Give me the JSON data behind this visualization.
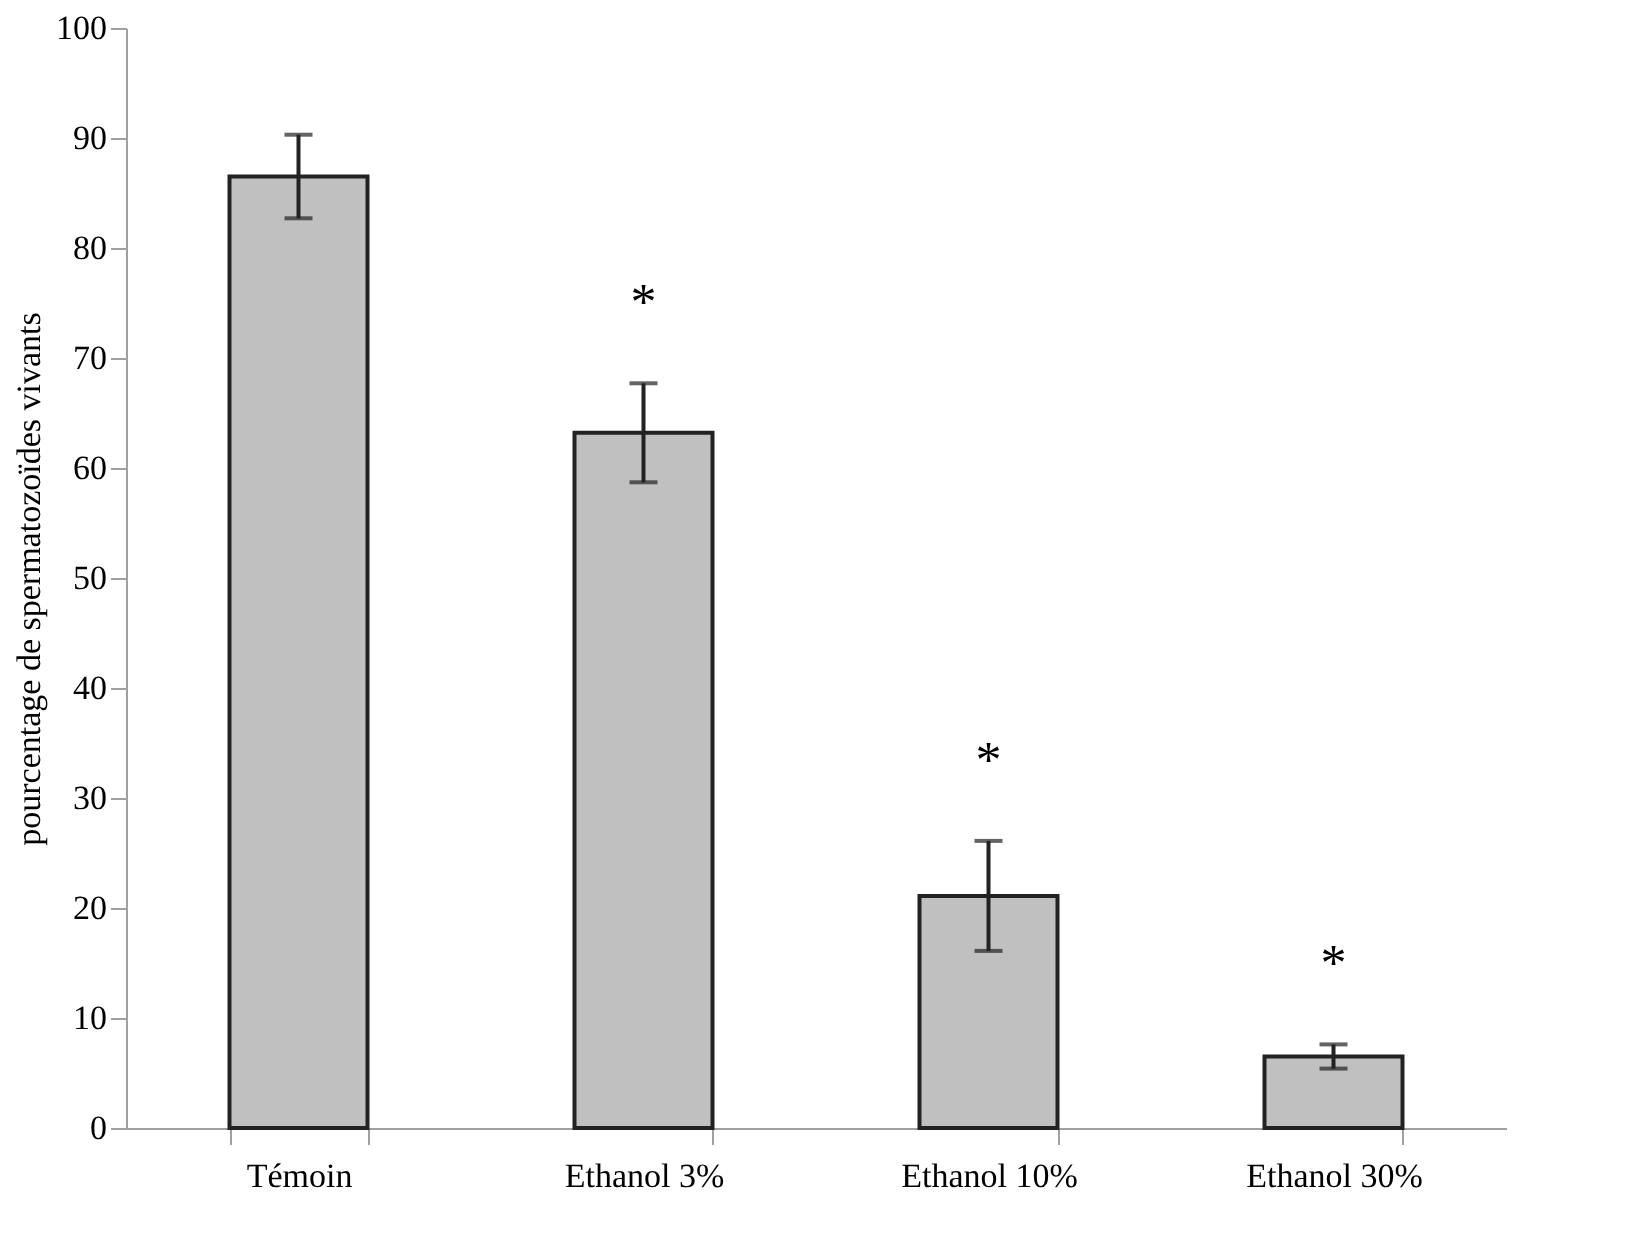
{
  "chart_data": {
    "type": "bar",
    "ylabel": "pourcentage de spermatozoïdes vivants",
    "categories": [
      "Témoin",
      "Ethanol 3%",
      "Ethanol 10%",
      "Ethanol 30%"
    ],
    "values": [
      86.5,
      63.2,
      21.1,
      6.5
    ],
    "errors": [
      3.8,
      4.5,
      5,
      1.1
    ],
    "color": "#c0c0c0",
    "ylim": [
      0,
      100
    ],
    "yticks": [
      0,
      10,
      20,
      30,
      40,
      50,
      60,
      70,
      80,
      90,
      100
    ],
    "grid": false,
    "annotations": [
      "*",
      "*",
      "*"
    ]
  }
}
